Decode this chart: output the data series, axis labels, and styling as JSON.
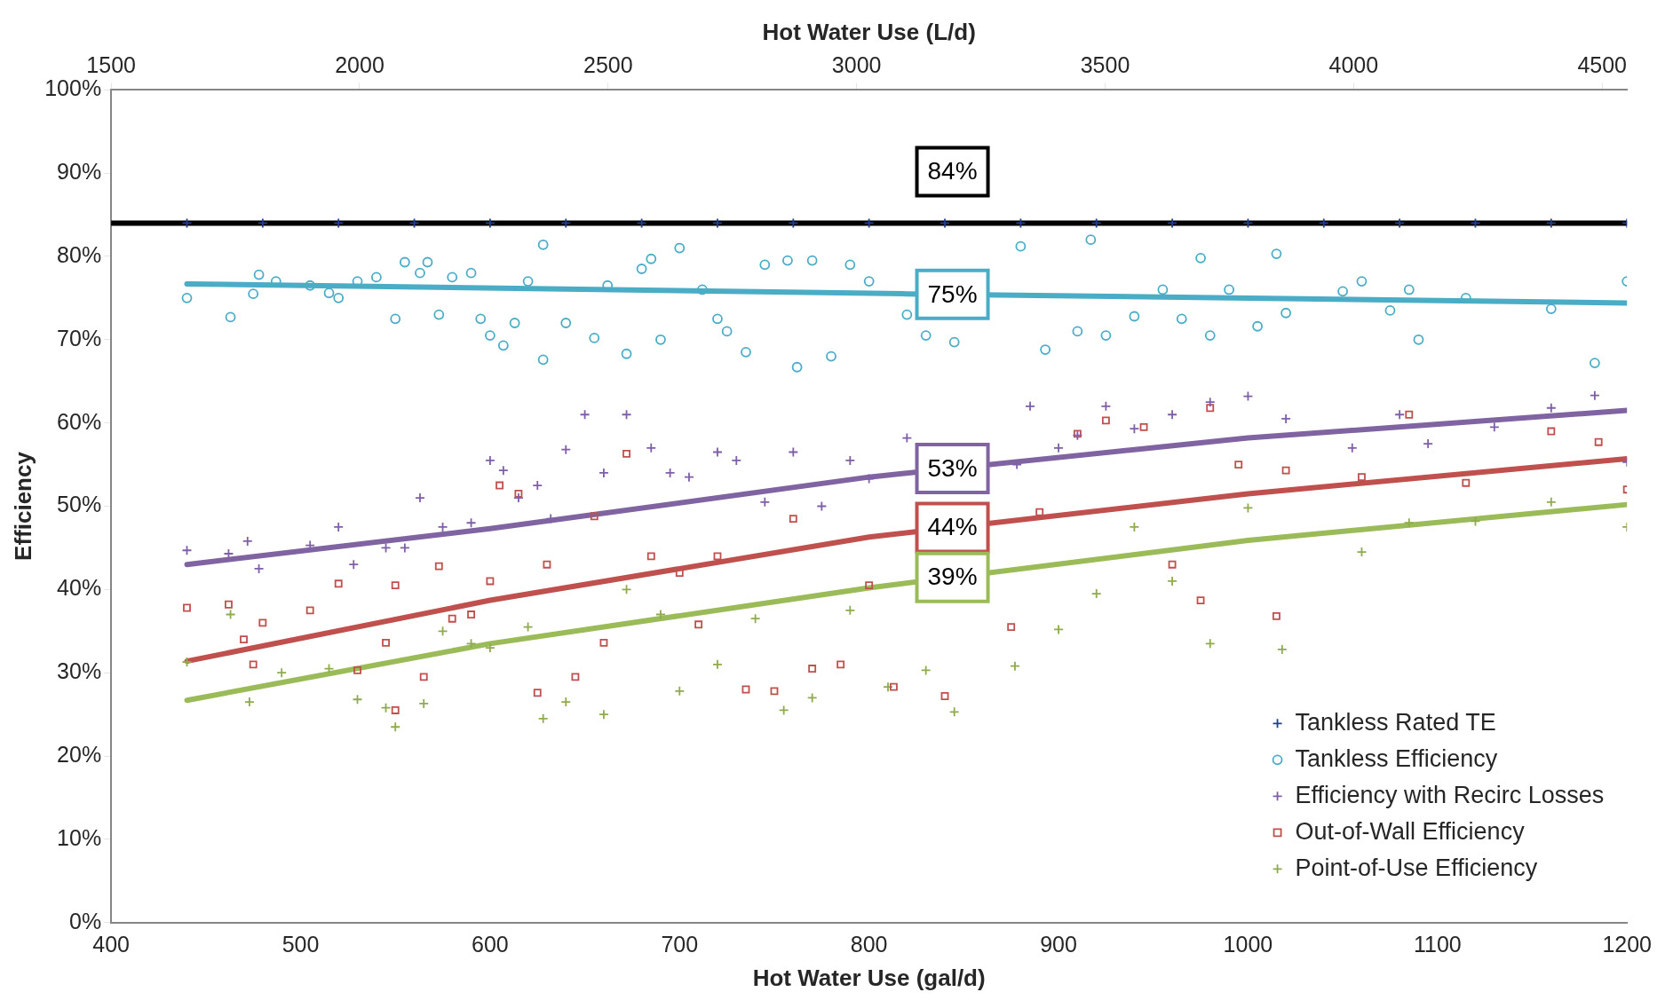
{
  "chart_data": {
    "type": "scatter",
    "xlabel": "Hot Water Use (gal/d)",
    "x2label": "Hot Water Use (L/d)",
    "ylabel": "Efficiency",
    "xlim": [
      400,
      1200
    ],
    "xticks": [
      400,
      500,
      600,
      700,
      800,
      900,
      1000,
      1100,
      1200
    ],
    "x2lim": [
      1500,
      4550
    ],
    "x2ticks": [
      1500,
      2000,
      2500,
      3000,
      3500,
      4000,
      4500
    ],
    "ylim": [
      0,
      100
    ],
    "yticks": [
      {
        "value": 0,
        "label": "0%"
      },
      {
        "value": 10,
        "label": "10%"
      },
      {
        "value": 20,
        "label": "20%"
      },
      {
        "value": 30,
        "label": "30%"
      },
      {
        "value": 40,
        "label": "40%"
      },
      {
        "value": 50,
        "label": "50%"
      },
      {
        "value": 60,
        "label": "60%"
      },
      {
        "value": 70,
        "label": "70%"
      },
      {
        "value": 80,
        "label": "80%"
      },
      {
        "value": 90,
        "label": "90%"
      },
      {
        "value": 100,
        "label": "100%"
      }
    ],
    "grid": false,
    "legend": "bottom right",
    "annotations": [
      "84%",
      "75%",
      "53%",
      "44%",
      "39%"
    ],
    "series": [
      {
        "name": "Tankless Rated TE",
        "type": "scatter",
        "marker": "cross",
        "color": "#1f3f8f",
        "x": [
          440,
          480,
          520,
          560,
          600,
          640,
          680,
          720,
          760,
          800,
          840,
          880,
          920,
          960,
          1000,
          1040,
          1080,
          1120,
          1160,
          1200
        ],
        "values": [
          84,
          84,
          84,
          84,
          84,
          84,
          84,
          84,
          84,
          84,
          84,
          84,
          84,
          84,
          84,
          84,
          84,
          84,
          84,
          84
        ]
      },
      {
        "name": "Tankless Efficiency",
        "type": "scatter",
        "marker": "circle",
        "color": "#4bacc6",
        "x": [
          440,
          463,
          475,
          478,
          487,
          505,
          515,
          520,
          530,
          540,
          550,
          555,
          563,
          567,
          573,
          580,
          590,
          595,
          600,
          607,
          613,
          620,
          628,
          628,
          640,
          655,
          662,
          672,
          680,
          685,
          690,
          700,
          712,
          720,
          725,
          735,
          745,
          757,
          762,
          770,
          780,
          790,
          800,
          820,
          830,
          845,
          880,
          893,
          910,
          917,
          925,
          940,
          955,
          965,
          975,
          980,
          990,
          1005,
          1015,
          1020,
          1050,
          1060,
          1075,
          1085,
          1090,
          1115,
          1160,
          1183,
          1200
        ],
        "values": [
          75,
          72.7,
          75.5,
          77.8,
          77,
          76.5,
          75.6,
          75,
          77,
          77.5,
          72.5,
          79.3,
          78,
          79.3,
          73,
          77.5,
          78,
          72.5,
          70.5,
          69.3,
          72,
          77,
          81.4,
          67.6,
          72,
          70.2,
          76.5,
          68.3,
          78.5,
          79.7,
          70,
          81,
          76,
          72.5,
          71,
          68.5,
          79,
          79.5,
          66.7,
          79.5,
          68,
          79,
          77,
          73,
          70.5,
          69.7,
          81.2,
          68.8,
          71,
          82,
          70.5,
          72.8,
          76,
          72.5,
          79.8,
          70.5,
          76,
          71.6,
          80.3,
          73.2,
          75.8,
          77,
          73.5,
          76,
          70,
          75,
          73.7,
          67.2,
          77
        ]
      },
      {
        "name": "Efficiency with Recirc Losses",
        "type": "scatter",
        "marker": "cross",
        "color": "#7f5fa8",
        "x": [
          440,
          462,
          472,
          478,
          505,
          520,
          528,
          545,
          555,
          563,
          575,
          590,
          600,
          607,
          615,
          625,
          632,
          640,
          650,
          660,
          672,
          685,
          695,
          705,
          720,
          730,
          745,
          760,
          775,
          790,
          800,
          820,
          878,
          885,
          900,
          910,
          925,
          940,
          960,
          980,
          1000,
          1020,
          1055,
          1080,
          1095,
          1130,
          1160,
          1183,
          1200
        ],
        "values": [
          44.7,
          44.3,
          45.8,
          42.5,
          45.3,
          47.5,
          43,
          45,
          45,
          51,
          47.5,
          48,
          55.5,
          54.3,
          51,
          52.5,
          48.5,
          56.8,
          61,
          54,
          61,
          57,
          54,
          53.5,
          56.5,
          55.5,
          50.5,
          56.5,
          50,
          55.5,
          53.3,
          58.2,
          55,
          62,
          57,
          58.5,
          62,
          59.3,
          61,
          62.5,
          63.2,
          60.5,
          57,
          61,
          57.5,
          59.5,
          61.8,
          63.3,
          55.3
        ]
      },
      {
        "name": "Out-of-Wall Efficiency",
        "type": "scatter",
        "marker": "square",
        "color": "#c0504d",
        "x": [
          440,
          462,
          470,
          475,
          480,
          505,
          520,
          530,
          545,
          550,
          550,
          565,
          573,
          580,
          590,
          600,
          605,
          615,
          625,
          630,
          645,
          655,
          660,
          672,
          685,
          700,
          710,
          720,
          735,
          750,
          760,
          770,
          785,
          800,
          813,
          840,
          875,
          890,
          910,
          925,
          945,
          960,
          975,
          980,
          995,
          1015,
          1020,
          1060,
          1085,
          1115,
          1160,
          1185,
          1200
        ],
        "values": [
          37.8,
          38.2,
          34,
          31,
          36,
          37.5,
          40.7,
          30.3,
          33.6,
          40.5,
          25.5,
          29.5,
          42.8,
          36.5,
          37,
          41,
          52.5,
          51.5,
          27.6,
          43,
          29.5,
          48.8,
          33.6,
          56.3,
          44,
          42,
          35.8,
          44,
          28,
          27.8,
          48.5,
          30.5,
          31,
          40.5,
          28.3,
          27.2,
          35.5,
          49.3,
          58.7,
          60.3,
          59.5,
          43,
          38.7,
          61.8,
          55,
          36.8,
          54.3,
          53.5,
          61,
          52.8,
          59,
          57.7,
          52
        ]
      },
      {
        "name": "Point-of-Use Efficiency",
        "type": "scatter",
        "marker": "cross",
        "color": "#8faa4f",
        "x": [
          440,
          463,
          473,
          490,
          515,
          530,
          545,
          550,
          565,
          575,
          590,
          600,
          620,
          628,
          640,
          660,
          672,
          690,
          700,
          720,
          740,
          755,
          770,
          790,
          810,
          830,
          845,
          877,
          900,
          920,
          940,
          960,
          980,
          1000,
          1018,
          1060,
          1085,
          1120,
          1160,
          1200
        ],
        "values": [
          31.3,
          37,
          26.5,
          30,
          30.5,
          26.8,
          25.8,
          23.5,
          26.3,
          35,
          33.5,
          33,
          35.5,
          24.5,
          26.5,
          25,
          40,
          37,
          27.8,
          31,
          36.5,
          25.5,
          27,
          37.5,
          28.3,
          30.3,
          25.3,
          30.8,
          35.2,
          39.5,
          47.5,
          41,
          33.5,
          49.8,
          32.8,
          44.5,
          48,
          48.2,
          50.5,
          47.5
        ]
      },
      {
        "type": "line",
        "marker": "none",
        "color": "#000000",
        "x": [
          400,
          1200
        ],
        "values": [
          84,
          84
        ]
      },
      {
        "type": "line",
        "marker": "none",
        "color": "#4bacc6",
        "x": [
          440,
          820,
          1200
        ],
        "values": [
          76.7,
          75.5,
          74.4
        ]
      },
      {
        "type": "line",
        "marker": "none",
        "color": "#8064a2",
        "x": [
          440,
          600,
          800,
          1000,
          1200
        ],
        "values": [
          43,
          47.3,
          53.5,
          58.2,
          61.5
        ]
      },
      {
        "type": "line",
        "marker": "none",
        "color": "#c0504d",
        "x": [
          440,
          600,
          800,
          1000,
          1200
        ],
        "values": [
          31.4,
          38.7,
          46.3,
          51.5,
          55.7
        ]
      },
      {
        "type": "line",
        "marker": "none",
        "color": "#9bbb59",
        "x": [
          440,
          600,
          800,
          1000,
          1200
        ],
        "values": [
          26.7,
          33.5,
          40.2,
          45.9,
          50.2
        ]
      }
    ]
  }
}
